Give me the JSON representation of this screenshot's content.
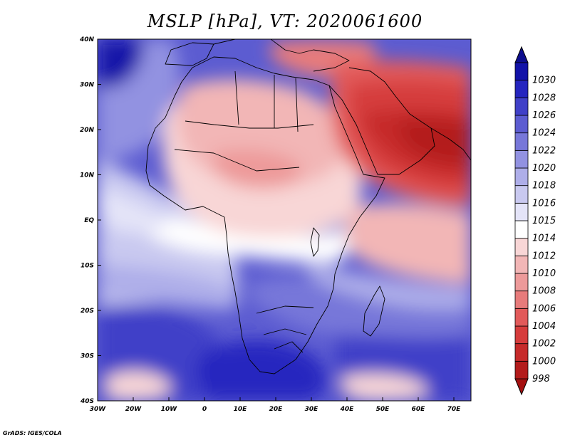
{
  "title": "MSLP [hPa], VT: 2020061600",
  "footer": "GrADS: IGES/COLA",
  "lat_labels": [
    "40N",
    "30N",
    "20N",
    "10N",
    "EQ",
    "10S",
    "20S",
    "30S",
    "40S"
  ],
  "lon_labels": [
    "30W",
    "20W",
    "10W",
    "0",
    "10E",
    "20E",
    "30E",
    "40E",
    "50E",
    "60E",
    "70E"
  ],
  "colorbar": {
    "levels": [
      "998",
      "1000",
      "1002",
      "1004",
      "1006",
      "1008",
      "1010",
      "1012",
      "1014",
      "1015",
      "1016",
      "1018",
      "1020",
      "1022",
      "1024",
      "1026",
      "1028",
      "1030"
    ],
    "colors": [
      "#b31b1b",
      "#c62a2a",
      "#d63c3c",
      "#e25a5a",
      "#e77b7b",
      "#ed9a9a",
      "#f2b6b6",
      "#f8d6d6",
      "#ffffff",
      "#e4e4f8",
      "#c9c9f0",
      "#aeaee9",
      "#9292e1",
      "#7777d9",
      "#5c5cd1",
      "#4040c8",
      "#2525bf",
      "#1212a8"
    ],
    "low_color": "#a51010",
    "high_color": "#0d0d8e"
  },
  "field": {
    "ocean_base": "#5c5cd1",
    "region_colors": [
      "#9292e1",
      "#c9c9f0",
      "#ffffff",
      "#f8d6d6",
      "#f2b6b6",
      "#ed9a9a",
      "#e77b7b",
      "#e25a5a",
      "#d63c3c",
      "#c62a2a",
      "#2525bf",
      "#1212a8",
      "#4040c8",
      "#7777d9",
      "#aeaee9",
      "#e4e4f8",
      "#b31b1b"
    ],
    "coast_color": "#000000"
  }
}
